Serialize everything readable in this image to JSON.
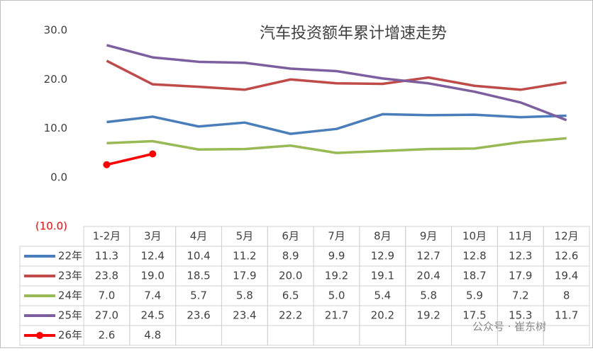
{
  "chart_data": {
    "type": "line",
    "title": "汽车投资额年累计增速走势",
    "categories": [
      "1-2月",
      "3月",
      "4月",
      "5月",
      "6月",
      "7月",
      "8月",
      "9月",
      "10月",
      "11月",
      "12月"
    ],
    "series": [
      {
        "name": "22年",
        "color": "#4a7ebb",
        "values": [
          11.3,
          12.4,
          10.4,
          11.2,
          8.9,
          9.9,
          12.9,
          12.7,
          12.8,
          12.3,
          12.6
        ],
        "value_labels": [
          "11.3",
          "12.4",
          "10.4",
          "11.2",
          "8.9",
          "9.9",
          "12.9",
          "12.7",
          "12.8",
          "12.3",
          "12.6"
        ]
      },
      {
        "name": "23年",
        "color": "#be4b48",
        "values": [
          23.8,
          19.0,
          18.5,
          17.9,
          20.0,
          19.2,
          19.1,
          20.4,
          18.7,
          17.9,
          19.4
        ],
        "value_labels": [
          "23.8",
          "19.0",
          "18.5",
          "17.9",
          "20.0",
          "19.2",
          "19.1",
          "20.4",
          "18.7",
          "17.9",
          "19.4"
        ]
      },
      {
        "name": "24年",
        "color": "#98b954",
        "values": [
          7.0,
          7.4,
          5.7,
          5.8,
          6.5,
          5.0,
          5.4,
          5.8,
          5.9,
          7.2,
          8
        ],
        "value_labels": [
          "7.0",
          "7.4",
          "5.7",
          "5.8",
          "6.5",
          "5.0",
          "5.4",
          "5.8",
          "5.9",
          "7.2",
          "8"
        ]
      },
      {
        "name": "25年",
        "color": "#7d5fa0",
        "values": [
          27.0,
          24.5,
          23.6,
          23.4,
          22.2,
          21.7,
          20.2,
          19.2,
          17.5,
          15.3,
          11.7
        ],
        "value_labels": [
          "27.0",
          "24.5",
          "23.6",
          "23.4",
          "22.2",
          "21.7",
          "20.2",
          "19.2",
          "17.5",
          "15.3",
          "11.7"
        ]
      },
      {
        "name": "26年",
        "color": "#ff0000",
        "markers": true,
        "values": [
          2.6,
          4.8,
          null,
          null,
          null,
          null,
          null,
          null,
          null,
          null,
          null
        ],
        "value_labels": [
          "2.6",
          "4.8",
          null,
          null,
          null,
          null,
          null,
          null,
          null,
          null,
          null
        ]
      }
    ],
    "ylim": [
      -10,
      30
    ],
    "yticks": [
      {
        "value": -10,
        "label": "(10.0)"
      },
      {
        "value": 0,
        "label": "0.0"
      },
      {
        "value": 10,
        "label": "10.0"
      },
      {
        "value": 20,
        "label": "20.0"
      },
      {
        "value": 30,
        "label": "30.0"
      }
    ],
    "negative_tick_color": "#ff0000",
    "grid": false,
    "watermark": "公众号 · 崔东树"
  }
}
